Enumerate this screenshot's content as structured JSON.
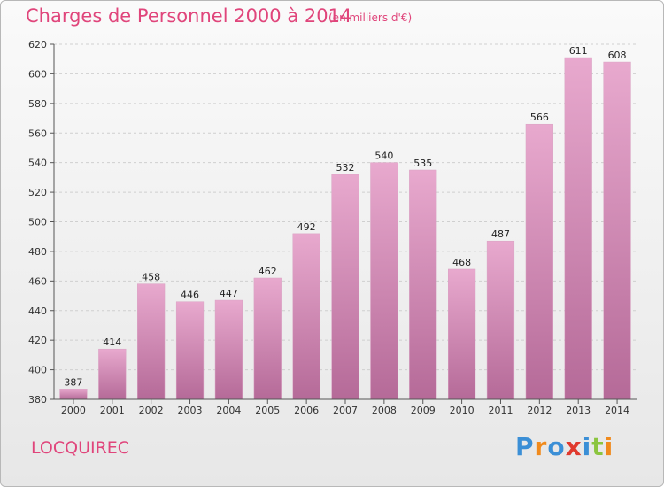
{
  "title": "Charges de Personnel 2000 à 2014",
  "subtitle": "(en milliers d'€)",
  "commune": "LOCQUIREC",
  "logo": {
    "text": "Proxiti",
    "letters": [
      {
        "ch": "P",
        "color": "#3b8fd6"
      },
      {
        "ch": "r",
        "color": "#f08a1c"
      },
      {
        "ch": "o",
        "color": "#3b8fd6"
      },
      {
        "ch": "x",
        "color": "#e03a2e"
      },
      {
        "ch": "i",
        "color": "#3b8fd6"
      },
      {
        "ch": "t",
        "color": "#8bc53f"
      },
      {
        "ch": "i",
        "color": "#f08a1c"
      }
    ]
  },
  "colors": {
    "accent": "#e0457b",
    "bar_top": "#e8a9ce",
    "bar_bottom": "#b56a98",
    "axis": "#555555",
    "grid": "#cfcfcf"
  },
  "chart_data": {
    "type": "bar",
    "categories": [
      "2000",
      "2001",
      "2002",
      "2003",
      "2004",
      "2005",
      "2006",
      "2007",
      "2008",
      "2009",
      "2010",
      "2011",
      "2012",
      "2013",
      "2014"
    ],
    "values": [
      387,
      414,
      458,
      446,
      447,
      462,
      492,
      532,
      540,
      535,
      468,
      487,
      566,
      611,
      608
    ],
    "ylim": [
      380,
      620
    ],
    "yticks": [
      380,
      400,
      420,
      440,
      460,
      480,
      500,
      520,
      540,
      560,
      580,
      600,
      620
    ],
    "xlabel": "",
    "ylabel": "",
    "grid": true,
    "data_labels": true
  }
}
